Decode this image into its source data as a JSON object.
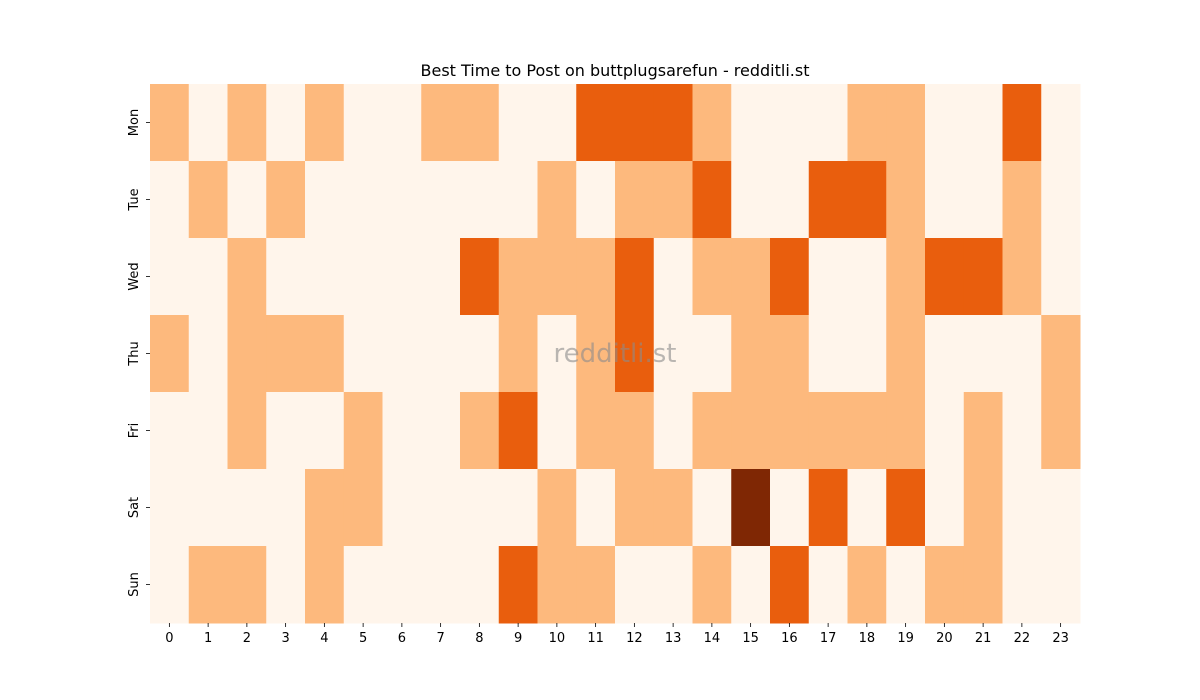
{
  "chart_data": {
    "type": "heatmap",
    "title": "Best Time to Post on buttplugsarefun - redditli.st",
    "watermark": "redditli.st",
    "x_labels": [
      "0",
      "1",
      "2",
      "3",
      "4",
      "5",
      "6",
      "7",
      "8",
      "9",
      "10",
      "11",
      "12",
      "13",
      "14",
      "15",
      "16",
      "17",
      "18",
      "19",
      "20",
      "21",
      "22",
      "23"
    ],
    "y_labels": [
      "Mon",
      "Tue",
      "Wed",
      "Thu",
      "Fri",
      "Sat",
      "Sun"
    ],
    "values": [
      [
        1,
        0,
        1,
        0,
        1,
        0,
        0,
        1,
        1,
        0,
        0,
        2,
        2,
        2,
        1,
        0,
        0,
        0,
        1,
        1,
        0,
        0,
        2,
        0
      ],
      [
        0,
        1,
        0,
        1,
        0,
        0,
        0,
        0,
        0,
        0,
        1,
        0,
        1,
        1,
        2,
        0,
        0,
        2,
        2,
        1,
        0,
        0,
        1,
        0
      ],
      [
        0,
        0,
        1,
        0,
        0,
        0,
        0,
        0,
        2,
        1,
        1,
        1,
        2,
        0,
        1,
        1,
        2,
        0,
        0,
        1,
        2,
        2,
        1,
        0
      ],
      [
        1,
        0,
        1,
        1,
        1,
        0,
        0,
        0,
        0,
        1,
        0,
        1,
        2,
        0,
        0,
        1,
        1,
        0,
        0,
        1,
        0,
        0,
        0,
        1
      ],
      [
        0,
        0,
        1,
        0,
        0,
        1,
        0,
        0,
        1,
        2,
        0,
        1,
        1,
        0,
        1,
        1,
        1,
        1,
        1,
        1,
        0,
        1,
        0,
        1
      ],
      [
        0,
        0,
        0,
        0,
        1,
        1,
        0,
        0,
        0,
        0,
        1,
        0,
        1,
        1,
        0,
        3,
        0,
        2,
        0,
        2,
        0,
        1,
        0,
        0
      ],
      [
        0,
        1,
        1,
        0,
        1,
        0,
        0,
        0,
        0,
        2,
        1,
        1,
        0,
        0,
        1,
        0,
        2,
        0,
        1,
        0,
        1,
        1,
        0,
        0
      ]
    ],
    "color_scale": [
      "#fff5eb",
      "#fdb97d",
      "#e95e0d",
      "#7f2704"
    ],
    "colorbar": false,
    "grid": false
  }
}
